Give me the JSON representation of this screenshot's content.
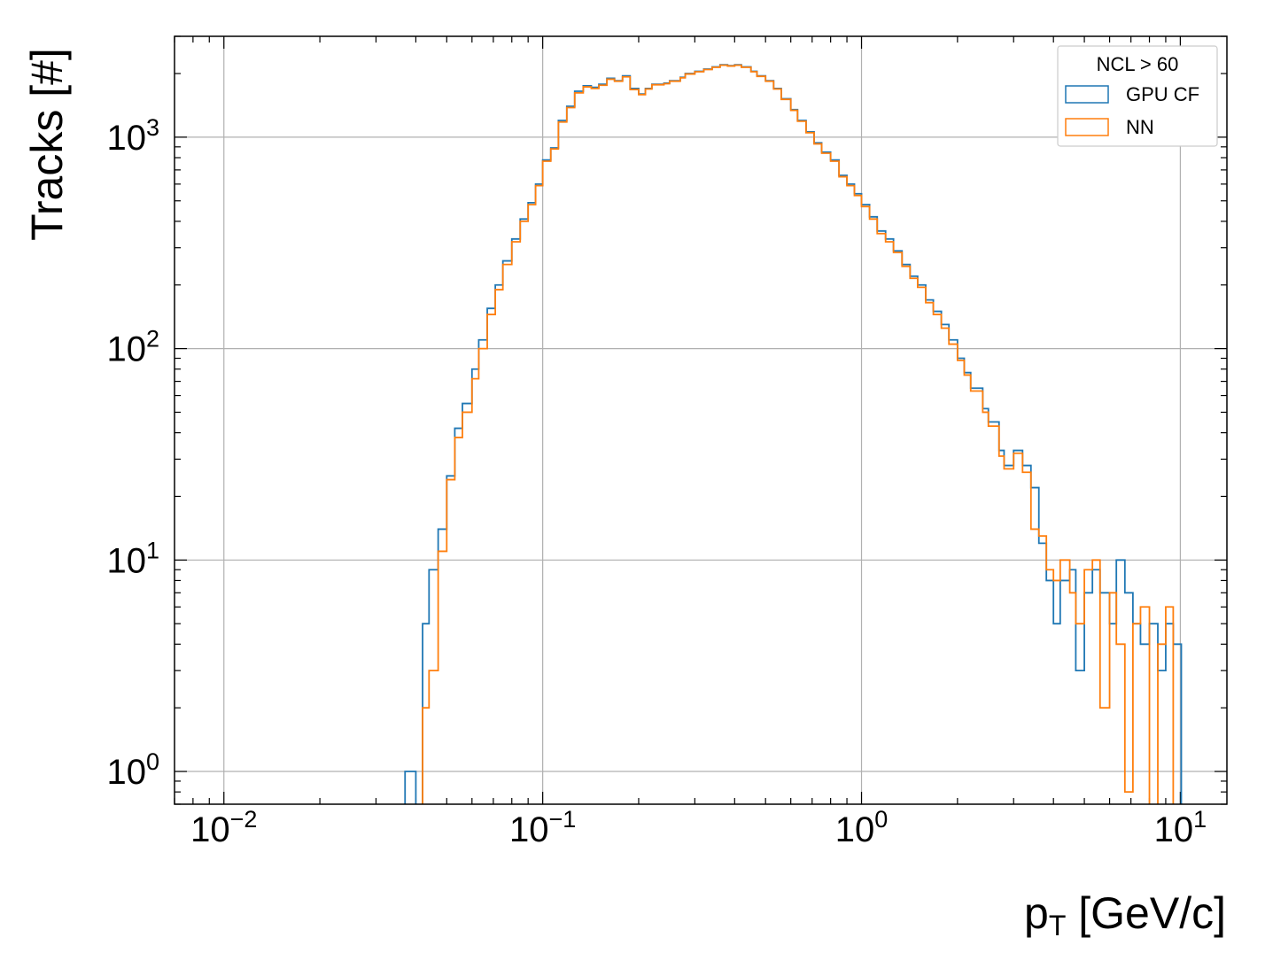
{
  "chart_data": {
    "type": "step histogram",
    "x_scale": "log",
    "y_scale": "log",
    "xlim": [
      0.007,
      14
    ],
    "ylim": [
      0.7,
      3000
    ],
    "grid": true,
    "xlabel": "p",
    "xlabel_subscript": "T",
    "xlabel_unit": " [GeV/c]",
    "ylabel": "Tracks [#]",
    "x_ticks": [
      {
        "value": 0.01,
        "base": "10",
        "exp": "−2"
      },
      {
        "value": 0.1,
        "base": "10",
        "exp": "−1"
      },
      {
        "value": 1,
        "base": "10",
        "exp": "0"
      },
      {
        "value": 10,
        "base": "10",
        "exp": "1"
      }
    ],
    "y_ticks": [
      {
        "value": 1,
        "base": "10",
        "exp": "0"
      },
      {
        "value": 10,
        "base": "10",
        "exp": "1"
      },
      {
        "value": 100,
        "base": "10",
        "exp": "2"
      },
      {
        "value": 1000,
        "base": "10",
        "exp": "3"
      }
    ],
    "legend": {
      "title": "NCL > 60",
      "position": "top-right"
    },
    "series": [
      {
        "name": "GPU CF",
        "color": "#1f77b4",
        "x": [
          0.037,
          0.04,
          0.042,
          0.044,
          0.047,
          0.05,
          0.053,
          0.056,
          0.06,
          0.063,
          0.067,
          0.071,
          0.075,
          0.08,
          0.085,
          0.09,
          0.095,
          0.1,
          0.106,
          0.112,
          0.119,
          0.126,
          0.134,
          0.142,
          0.15,
          0.159,
          0.168,
          0.178,
          0.188,
          0.2,
          0.21,
          0.22,
          0.24,
          0.25,
          0.27,
          0.28,
          0.3,
          0.32,
          0.34,
          0.36,
          0.38,
          0.4,
          0.42,
          0.45,
          0.47,
          0.5,
          0.53,
          0.56,
          0.6,
          0.63,
          0.67,
          0.71,
          0.75,
          0.8,
          0.85,
          0.9,
          0.95,
          1.0,
          1.06,
          1.12,
          1.19,
          1.26,
          1.34,
          1.42,
          1.5,
          1.59,
          1.68,
          1.78,
          1.88,
          2.0,
          2.1,
          2.2,
          2.4,
          2.5,
          2.7,
          2.8,
          3.0,
          3.2,
          3.4,
          3.6,
          3.8,
          4.0,
          4.2,
          4.5,
          4.7,
          5.0,
          5.3,
          5.6,
          6.0,
          6.3,
          6.7,
          7.1,
          7.5,
          8.0,
          8.5,
          9.0,
          9.5
        ],
        "values": [
          1,
          0.5,
          5,
          9,
          14,
          25,
          42,
          55,
          80,
          110,
          155,
          200,
          260,
          330,
          410,
          490,
          600,
          780,
          890,
          1200,
          1400,
          1650,
          1750,
          1720,
          1780,
          1900,
          1850,
          1950,
          1700,
          1600,
          1700,
          1780,
          1800,
          1850,
          1920,
          2000,
          2050,
          2100,
          2150,
          2200,
          2180,
          2200,
          2150,
          2050,
          1950,
          1850,
          1700,
          1520,
          1350,
          1200,
          1060,
          940,
          850,
          780,
          660,
          600,
          540,
          480,
          420,
          360,
          330,
          290,
          250,
          220,
          200,
          170,
          150,
          130,
          110,
          90,
          77,
          65,
          52,
          45,
          33,
          28,
          33,
          28,
          22,
          12,
          8,
          5,
          8,
          9,
          3,
          7,
          9,
          7,
          5,
          10,
          7,
          5,
          4,
          5,
          3,
          5,
          4
        ],
        "_note": "values are per-bin counts at bin lower edges"
      },
      {
        "name": "NN",
        "color": "#ff7f0e",
        "x": [
          0.037,
          0.04,
          0.042,
          0.044,
          0.047,
          0.05,
          0.053,
          0.056,
          0.06,
          0.063,
          0.067,
          0.071,
          0.075,
          0.08,
          0.085,
          0.09,
          0.095,
          0.1,
          0.106,
          0.112,
          0.119,
          0.126,
          0.134,
          0.142,
          0.15,
          0.159,
          0.168,
          0.178,
          0.188,
          0.2,
          0.21,
          0.22,
          0.24,
          0.25,
          0.27,
          0.28,
          0.3,
          0.32,
          0.34,
          0.36,
          0.38,
          0.4,
          0.42,
          0.45,
          0.47,
          0.5,
          0.53,
          0.56,
          0.6,
          0.63,
          0.67,
          0.71,
          0.75,
          0.8,
          0.85,
          0.9,
          0.95,
          1.0,
          1.06,
          1.12,
          1.19,
          1.26,
          1.34,
          1.42,
          1.5,
          1.59,
          1.68,
          1.78,
          1.88,
          2.0,
          2.1,
          2.2,
          2.4,
          2.5,
          2.7,
          2.8,
          3.0,
          3.2,
          3.4,
          3.6,
          3.8,
          4.0,
          4.2,
          4.5,
          4.7,
          5.0,
          5.3,
          5.6,
          6.0,
          6.3,
          6.7,
          7.1,
          7.5,
          8.0,
          8.5,
          9.0,
          9.5
        ],
        "values": [
          0.5,
          0.5,
          2,
          3,
          11,
          24,
          38,
          50,
          72,
          100,
          145,
          190,
          250,
          320,
          400,
          480,
          590,
          770,
          880,
          1180,
          1380,
          1620,
          1730,
          1700,
          1760,
          1880,
          1840,
          1930,
          1680,
          1590,
          1690,
          1770,
          1790,
          1840,
          1910,
          1990,
          2040,
          2090,
          2140,
          2190,
          2170,
          2190,
          2140,
          2040,
          1940,
          1840,
          1690,
          1510,
          1340,
          1190,
          1050,
          930,
          840,
          770,
          650,
          590,
          530,
          470,
          410,
          350,
          320,
          285,
          245,
          215,
          195,
          165,
          145,
          125,
          105,
          88,
          75,
          63,
          50,
          43,
          31,
          27,
          32,
          26,
          14,
          13,
          9,
          8,
          10,
          7,
          5,
          9,
          10,
          2,
          7,
          4,
          0.8,
          5,
          6,
          0.5,
          4,
          6,
          0.5
        ],
        "_note": "values are per-bin counts at bin lower edges"
      }
    ]
  }
}
